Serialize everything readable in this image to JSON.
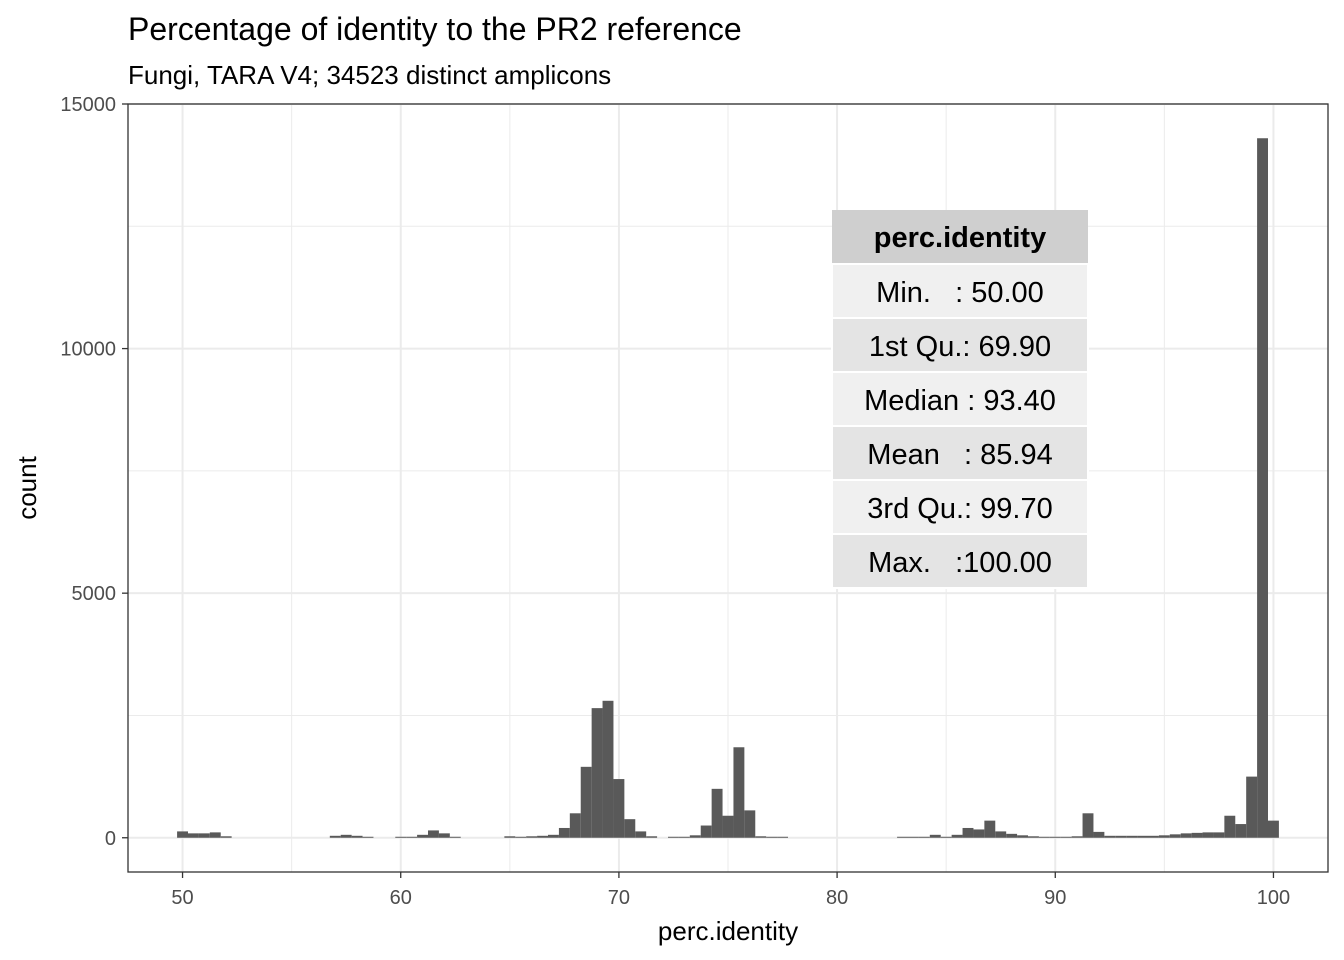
{
  "chart_data": {
    "type": "bar",
    "title": "Percentage of identity to the PR2 reference",
    "subtitle": "Fungi, TARA V4; 34523 distinct amplicons",
    "xlabel": "perc.identity",
    "ylabel": "count",
    "xlim": [
      47.5,
      102.5
    ],
    "ylim": [
      -700,
      15000
    ],
    "x_ticks": [
      "50",
      "60",
      "70",
      "80",
      "90",
      "100"
    ],
    "y_ticks": [
      "0",
      "5000",
      "10000",
      "15000"
    ],
    "grid": true,
    "bin_width": 0.5,
    "bins": [
      {
        "x": 50.0,
        "count": 130
      },
      {
        "x": 50.5,
        "count": 90
      },
      {
        "x": 51.0,
        "count": 90
      },
      {
        "x": 51.5,
        "count": 110
      },
      {
        "x": 52.0,
        "count": 30
      },
      {
        "x": 57.0,
        "count": 40
      },
      {
        "x": 57.5,
        "count": 60
      },
      {
        "x": 58.0,
        "count": 40
      },
      {
        "x": 58.5,
        "count": 20
      },
      {
        "x": 60.0,
        "count": 20
      },
      {
        "x": 60.5,
        "count": 20
      },
      {
        "x": 61.0,
        "count": 60
      },
      {
        "x": 61.5,
        "count": 150
      },
      {
        "x": 62.0,
        "count": 90
      },
      {
        "x": 62.5,
        "count": 20
      },
      {
        "x": 65.0,
        "count": 30
      },
      {
        "x": 65.5,
        "count": 20
      },
      {
        "x": 66.0,
        "count": 30
      },
      {
        "x": 66.5,
        "count": 40
      },
      {
        "x": 67.0,
        "count": 60
      },
      {
        "x": 67.5,
        "count": 200
      },
      {
        "x": 68.0,
        "count": 500
      },
      {
        "x": 68.5,
        "count": 1450
      },
      {
        "x": 69.0,
        "count": 2650
      },
      {
        "x": 69.5,
        "count": 2800
      },
      {
        "x": 70.0,
        "count": 1200
      },
      {
        "x": 70.5,
        "count": 380
      },
      {
        "x": 71.0,
        "count": 130
      },
      {
        "x": 71.5,
        "count": 30
      },
      {
        "x": 72.5,
        "count": 20
      },
      {
        "x": 73.0,
        "count": 20
      },
      {
        "x": 73.5,
        "count": 50
      },
      {
        "x": 74.0,
        "count": 250
      },
      {
        "x": 74.5,
        "count": 1000
      },
      {
        "x": 75.0,
        "count": 450
      },
      {
        "x": 75.5,
        "count": 1850
      },
      {
        "x": 76.0,
        "count": 560
      },
      {
        "x": 76.5,
        "count": 30
      },
      {
        "x": 77.0,
        "count": 20
      },
      {
        "x": 77.5,
        "count": 20
      },
      {
        "x": 83.0,
        "count": 20
      },
      {
        "x": 83.5,
        "count": 20
      },
      {
        "x": 84.0,
        "count": 20
      },
      {
        "x": 84.5,
        "count": 60
      },
      {
        "x": 85.0,
        "count": 20
      },
      {
        "x": 85.5,
        "count": 60
      },
      {
        "x": 86.0,
        "count": 200
      },
      {
        "x": 86.5,
        "count": 170
      },
      {
        "x": 87.0,
        "count": 350
      },
      {
        "x": 87.5,
        "count": 130
      },
      {
        "x": 88.0,
        "count": 80
      },
      {
        "x": 88.5,
        "count": 50
      },
      {
        "x": 89.0,
        "count": 30
      },
      {
        "x": 89.5,
        "count": 20
      },
      {
        "x": 90.0,
        "count": 20
      },
      {
        "x": 90.5,
        "count": 20
      },
      {
        "x": 91.0,
        "count": 30
      },
      {
        "x": 91.5,
        "count": 500
      },
      {
        "x": 92.0,
        "count": 120
      },
      {
        "x": 92.5,
        "count": 40
      },
      {
        "x": 93.0,
        "count": 40
      },
      {
        "x": 93.5,
        "count": 40
      },
      {
        "x": 94.0,
        "count": 40
      },
      {
        "x": 94.5,
        "count": 40
      },
      {
        "x": 95.0,
        "count": 50
      },
      {
        "x": 95.5,
        "count": 70
      },
      {
        "x": 96.0,
        "count": 90
      },
      {
        "x": 96.5,
        "count": 100
      },
      {
        "x": 97.0,
        "count": 110
      },
      {
        "x": 97.5,
        "count": 110
      },
      {
        "x": 98.0,
        "count": 450
      },
      {
        "x": 98.5,
        "count": 280
      },
      {
        "x": 99.0,
        "count": 1250
      },
      {
        "x": 99.5,
        "count": 14300
      },
      {
        "x": 100.0,
        "count": 350
      }
    ],
    "annotation_table": {
      "header": "perc.identity",
      "rows": [
        "Min.   : 50.00",
        "1st Qu.: 69.90",
        "Median : 93.40",
        "Mean   : 85.94",
        "3rd Qu.: 99.70",
        "Max.   :100.00"
      ]
    },
    "colors": {
      "bar": "#595959",
      "grid": "#ebebeb",
      "table_header_bg": "#cfcfcf",
      "table_row_odd": "#f0f0f0",
      "table_row_even": "#e4e4e4"
    }
  }
}
